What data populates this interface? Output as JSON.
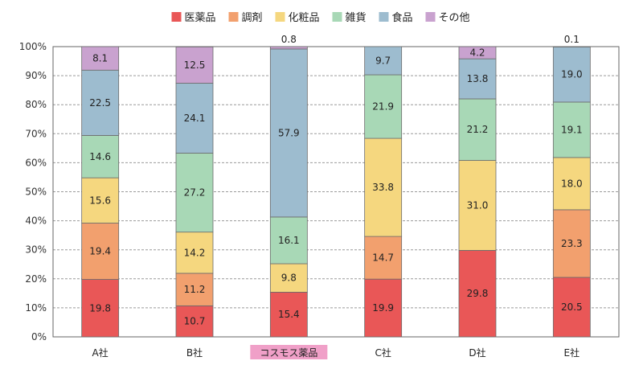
{
  "chart_data": {
    "type": "bar",
    "stacked": true,
    "percent": true,
    "categories": [
      "A社",
      "B社",
      "コスモス薬品",
      "C社",
      "D社",
      "E社"
    ],
    "highlight_category": "コスモス薬品",
    "highlight_color": "#f0a0c8",
    "series": [
      {
        "name": "医薬品",
        "color": "#e95757",
        "values": [
          19.8,
          10.7,
          15.4,
          19.9,
          29.8,
          20.5
        ]
      },
      {
        "name": "調剤",
        "color": "#f2a06e",
        "values": [
          19.4,
          11.2,
          0,
          14.7,
          0,
          23.3
        ]
      },
      {
        "name": "化粧品",
        "color": "#f5d77f",
        "values": [
          15.6,
          14.2,
          9.8,
          33.8,
          31.0,
          18.0
        ]
      },
      {
        "name": "雑貨",
        "color": "#a8d8b6",
        "values": [
          14.6,
          27.2,
          16.1,
          21.9,
          21.2,
          19.1
        ]
      },
      {
        "name": "食品",
        "color": "#9dbccf",
        "values": [
          22.5,
          24.1,
          57.9,
          9.7,
          13.8,
          19.0
        ]
      },
      {
        "name": "その他",
        "color": "#c9a2cf",
        "values": [
          8.1,
          12.5,
          0.8,
          0,
          4.2,
          0.1
        ]
      }
    ],
    "data_labels": [
      [
        "19.8",
        "10.7",
        "15.4",
        "19.9",
        "29.8",
        "20.5"
      ],
      [
        "19.4",
        "11.2",
        "",
        "14.7",
        "",
        "23.3"
      ],
      [
        "15.6",
        "14.2",
        "9.8",
        "33.8",
        "31.0",
        "18.0"
      ],
      [
        "14.6",
        "27.2",
        "16.1",
        "21.9",
        "21.2",
        "19.1"
      ],
      [
        "22.5",
        "24.1",
        "57.9",
        "9.7",
        "13.8",
        "19.0"
      ],
      [
        "8.1",
        "12.5",
        "0.8",
        "",
        "4.2",
        "0.1"
      ]
    ],
    "outside_label_values": [
      "0.8",
      "0.1"
    ],
    "y_ticks": [
      "0%",
      "10%",
      "20%",
      "30%",
      "40%",
      "50%",
      "60%",
      "70%",
      "80%",
      "90%",
      "100%"
    ],
    "ylim": [
      0,
      100
    ],
    "grid": "horizontal-dashed",
    "legend_position": "top-center",
    "title": "",
    "xlabel": "",
    "ylabel": ""
  }
}
